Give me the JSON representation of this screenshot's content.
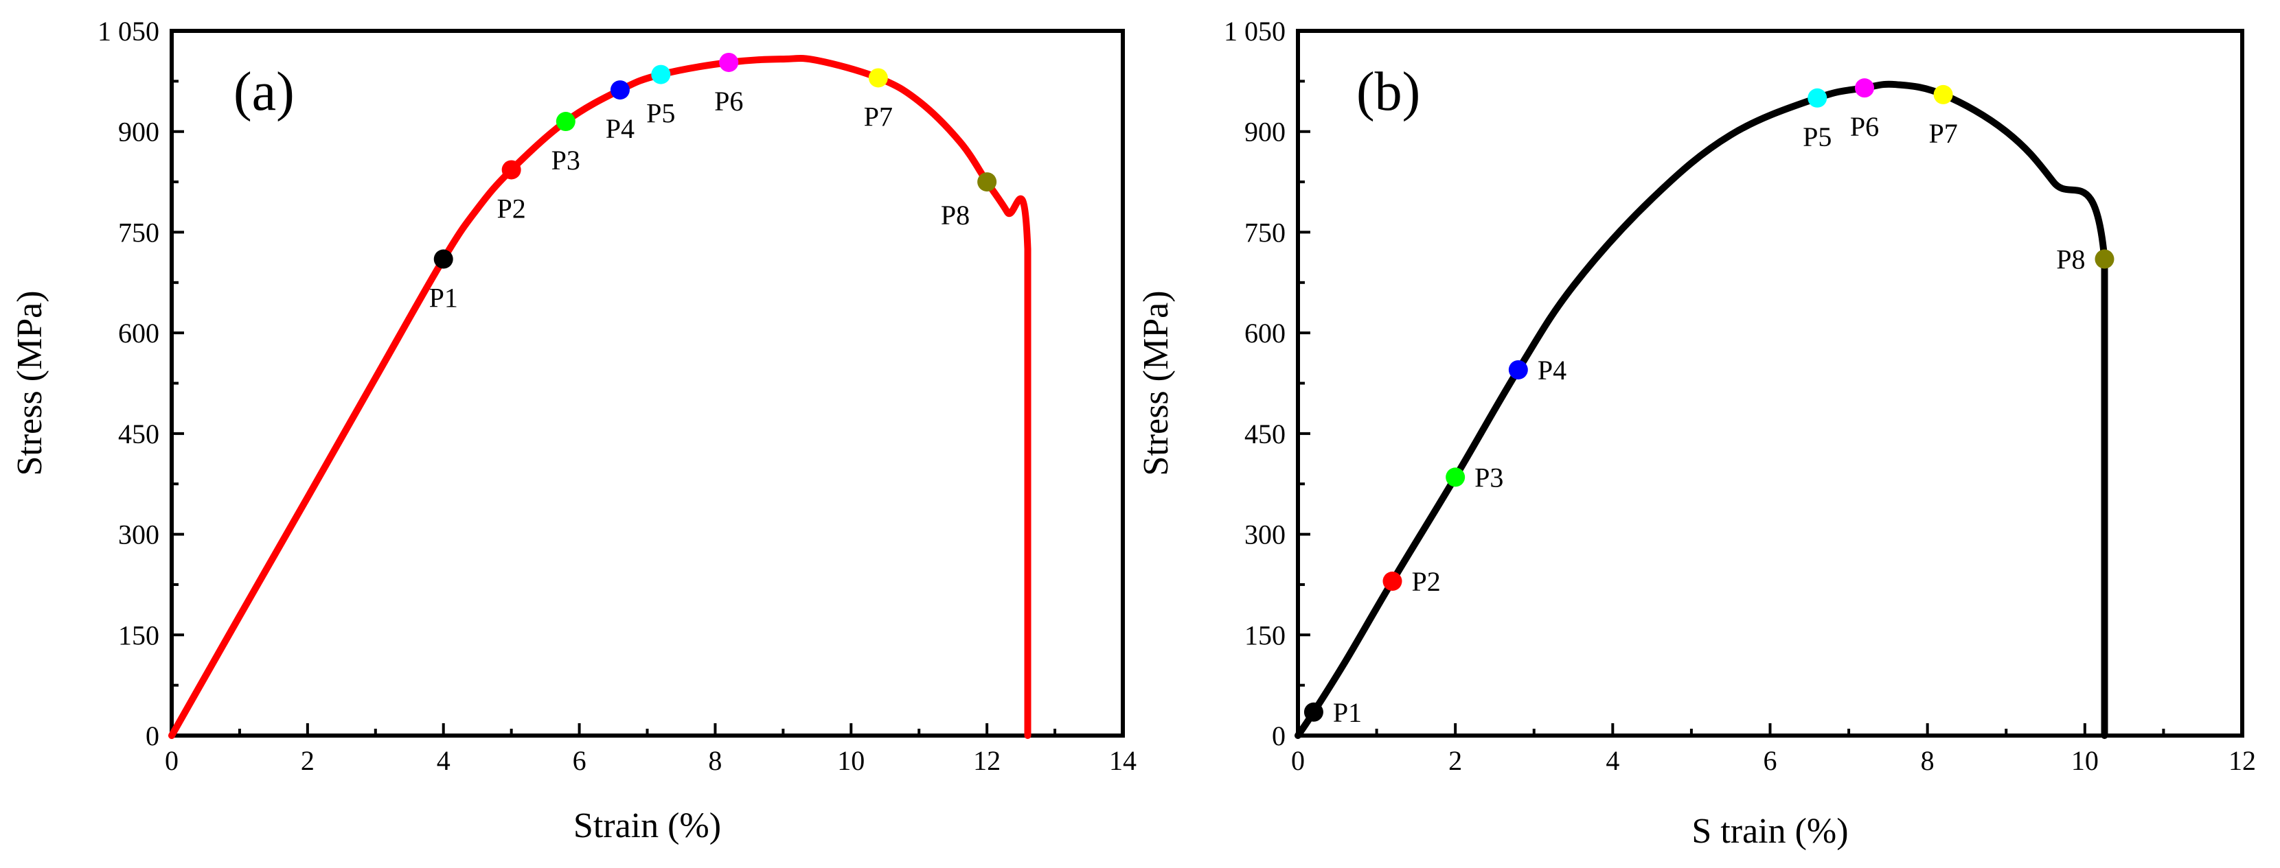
{
  "chart_data": [
    {
      "type": "line",
      "panel_label": "(a)",
      "xlabel": "Strain (%)",
      "ylabel": "Stress (MPa)",
      "xlim": [
        0,
        14
      ],
      "ylim": [
        0,
        1050
      ],
      "xticks": [
        0,
        2,
        4,
        6,
        8,
        10,
        12,
        14
      ],
      "yticks": [
        0,
        150,
        300,
        450,
        600,
        750,
        900,
        1050
      ],
      "x_tick_labels": [
        "0",
        "2",
        "4",
        "6",
        "8",
        "10",
        "12",
        "14"
      ],
      "y_tick_labels": [
        "0",
        "150",
        "300",
        "450",
        "600",
        "750",
        "900",
        "1 050"
      ],
      "grid": false,
      "line_color": "#ff0000",
      "series": [
        {
          "x": [
            0,
            1,
            2,
            3,
            4,
            4.5,
            5,
            5.8,
            6.6,
            7.2,
            8.2,
            9,
            9.5,
            10.4,
            11,
            11.6,
            12,
            12.3,
            12.6,
            12.6
          ],
          "y": [
            0,
            178,
            355,
            533,
            710,
            785,
            843,
            915,
            962,
            985,
            1003,
            1008,
            1006,
            980,
            945,
            885,
            825,
            780,
            725,
            0
          ]
        }
      ],
      "points": [
        {
          "label": "P1",
          "x": 4.0,
          "y": 710,
          "color": "#000000",
          "label_pos": "below"
        },
        {
          "label": "P2",
          "x": 5.0,
          "y": 843,
          "color": "#ff0000",
          "label_pos": "below"
        },
        {
          "label": "P3",
          "x": 5.8,
          "y": 915,
          "color": "#00ff00",
          "label_pos": "below"
        },
        {
          "label": "P4",
          "x": 6.6,
          "y": 962,
          "color": "#0000ff",
          "label_pos": "below"
        },
        {
          "label": "P5",
          "x": 7.2,
          "y": 985,
          "color": "#00ffff",
          "label_pos": "below"
        },
        {
          "label": "P6",
          "x": 8.2,
          "y": 1003,
          "color": "#ff00ff",
          "label_pos": "below"
        },
        {
          "label": "P7",
          "x": 10.4,
          "y": 980,
          "color": "#ffff00",
          "label_pos": "below"
        },
        {
          "label": "P8",
          "x": 12.0,
          "y": 825,
          "color": "#808000",
          "label_pos": "below-left"
        }
      ]
    },
    {
      "type": "line",
      "panel_label": "(b)",
      "xlabel": "S train (%)",
      "ylabel": "Stress (MPa)",
      "xlim": [
        0,
        12
      ],
      "ylim": [
        0,
        1050
      ],
      "xticks": [
        0,
        2,
        4,
        6,
        8,
        10,
        12
      ],
      "yticks": [
        0,
        150,
        300,
        450,
        600,
        750,
        900,
        1050
      ],
      "x_tick_labels": [
        "0",
        "2",
        "4",
        "6",
        "8",
        "10",
        "12"
      ],
      "y_tick_labels": [
        "0",
        "150",
        "300",
        "450",
        "600",
        "750",
        "900",
        "1 050"
      ],
      "grid": false,
      "line_color": "#000000",
      "series": [
        {
          "x": [
            0,
            0.2,
            0.6,
            1.2,
            2.0,
            2.8,
            3.5,
            4.5,
            5.5,
            6.6,
            7.2,
            7.6,
            8.2,
            9.0,
            9.6,
            10.25,
            10.25
          ],
          "y": [
            0,
            35,
            110,
            230,
            385,
            545,
            670,
            800,
            895,
            950,
            965,
            970,
            955,
            900,
            825,
            710,
            0
          ]
        }
      ],
      "points": [
        {
          "label": "P1",
          "x": 0.2,
          "y": 35,
          "color": "#000000",
          "label_pos": "right"
        },
        {
          "label": "P2",
          "x": 1.2,
          "y": 230,
          "color": "#ff0000",
          "label_pos": "right"
        },
        {
          "label": "P3",
          "x": 2.0,
          "y": 385,
          "color": "#00ff00",
          "label_pos": "right"
        },
        {
          "label": "P4",
          "x": 2.8,
          "y": 545,
          "color": "#0000ff",
          "label_pos": "right"
        },
        {
          "label": "P5",
          "x": 6.6,
          "y": 950,
          "color": "#00ffff",
          "label_pos": "below"
        },
        {
          "label": "P6",
          "x": 7.2,
          "y": 965,
          "color": "#ff00ff",
          "label_pos": "below"
        },
        {
          "label": "P7",
          "x": 8.2,
          "y": 955,
          "color": "#ffff00",
          "label_pos": "below"
        },
        {
          "label": "P8",
          "x": 10.25,
          "y": 710,
          "color": "#808000",
          "label_pos": "left"
        }
      ]
    }
  ]
}
